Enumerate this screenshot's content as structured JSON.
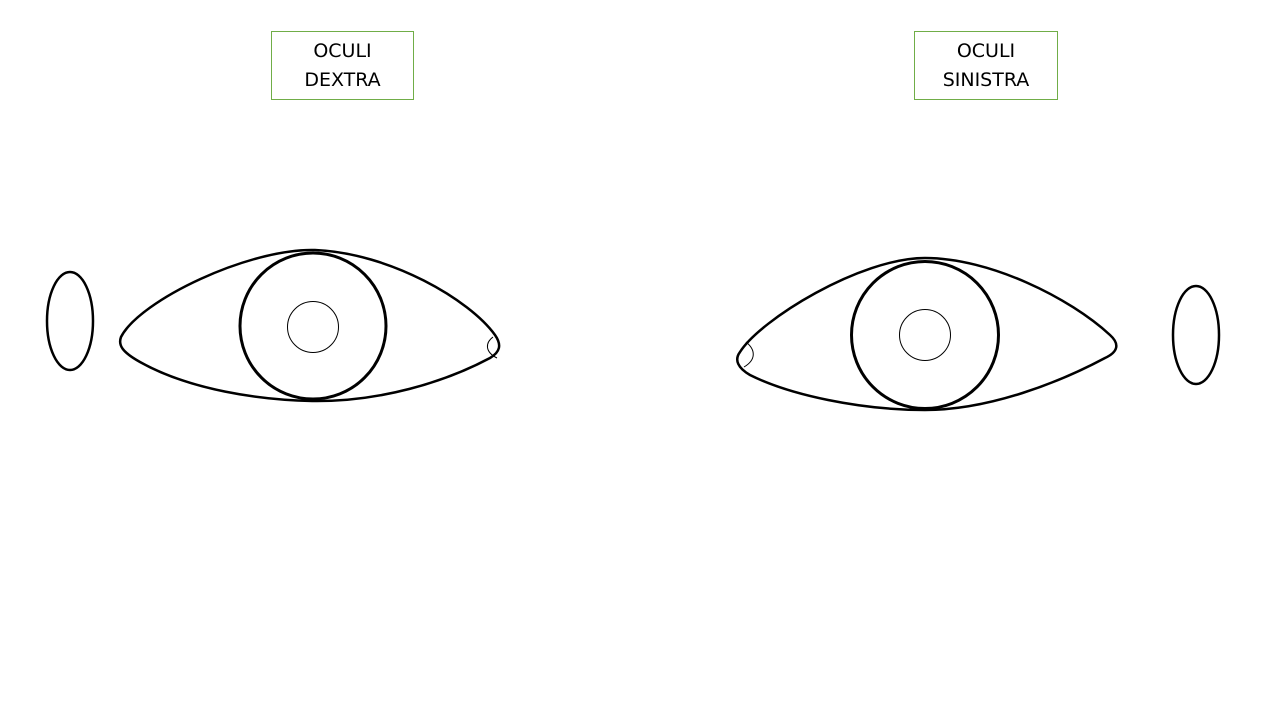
{
  "labels": {
    "right_eye": {
      "line1": "OCULI",
      "line2": "DEXTRA"
    },
    "left_eye": {
      "line1": "OCULI",
      "line2": "SINISTRA"
    }
  },
  "colors": {
    "label_border": "#70ad47",
    "stroke": "#000000",
    "background": "#ffffff"
  }
}
